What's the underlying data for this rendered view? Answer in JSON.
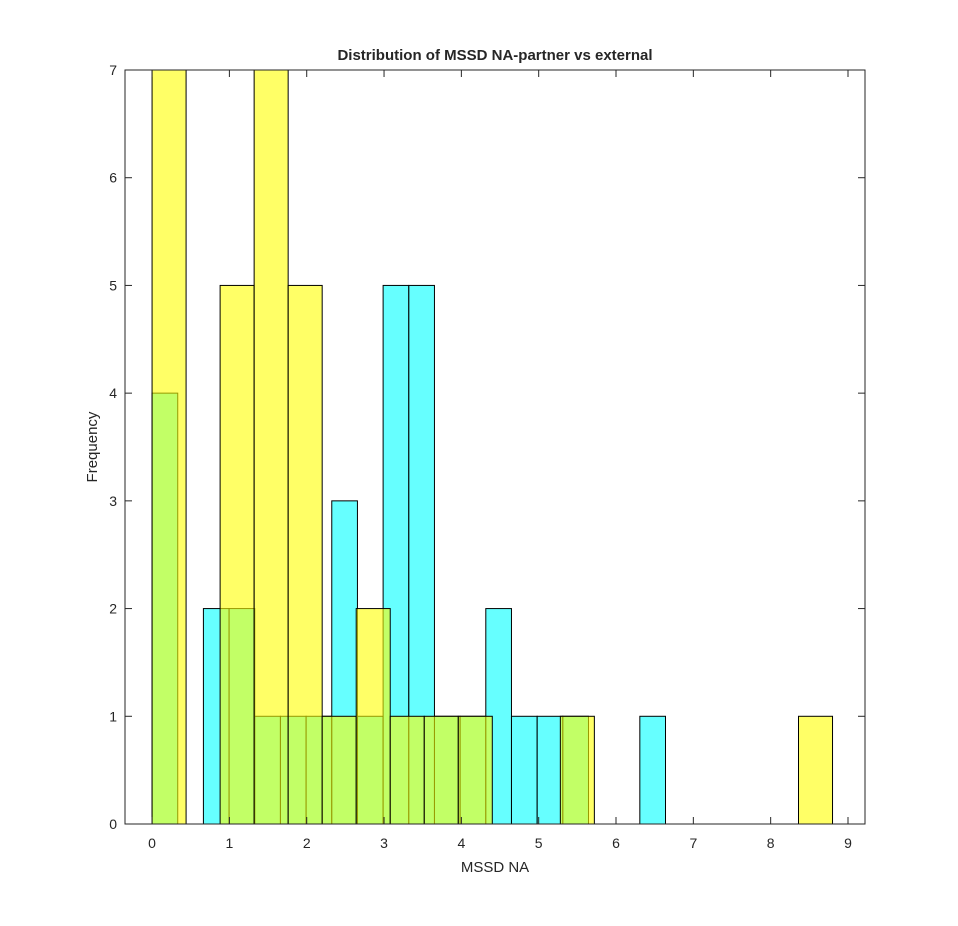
{
  "chart_data": {
    "type": "bar",
    "title": "Distribution of MSSD NA-partner vs external",
    "xlabel": "MSSD NA",
    "ylabel": "Frequency",
    "xlim": [
      -0.35,
      9.22
    ],
    "ylim": [
      0,
      7
    ],
    "xticks": [
      "0",
      "1",
      "2",
      "3",
      "4",
      "5",
      "6",
      "7",
      "8",
      "9"
    ],
    "yticks": [
      "0",
      "1",
      "2",
      "3",
      "4",
      "5",
      "6",
      "7"
    ],
    "grid": false,
    "series": [
      {
        "color": "#00FFFF",
        "opacity": 0.6,
        "bin_width": 0.332,
        "bins": [
          {
            "x0": 0.0,
            "count": 4
          },
          {
            "x0": 0.664,
            "count": 2
          },
          {
            "x0": 0.996,
            "count": 2
          },
          {
            "x0": 1.328,
            "count": 1
          },
          {
            "x0": 1.66,
            "count": 1
          },
          {
            "x0": 1.992,
            "count": 1
          },
          {
            "x0": 2.324,
            "count": 3
          },
          {
            "x0": 2.656,
            "count": 1
          },
          {
            "x0": 2.988,
            "count": 5
          },
          {
            "x0": 3.32,
            "count": 5
          },
          {
            "x0": 3.652,
            "count": 1
          },
          {
            "x0": 3.984,
            "count": 1
          },
          {
            "x0": 4.316,
            "count": 2
          },
          {
            "x0": 4.648,
            "count": 1
          },
          {
            "x0": 4.98,
            "count": 1
          },
          {
            "x0": 5.312,
            "count": 1
          },
          {
            "x0": 6.308,
            "count": 1
          }
        ]
      },
      {
        "color": "#FFFF00",
        "opacity": 0.6,
        "bin_width": 0.44,
        "bins": [
          {
            "x0": 0.0,
            "count": 7
          },
          {
            "x0": 0.88,
            "count": 5
          },
          {
            "x0": 1.32,
            "count": 7
          },
          {
            "x0": 1.76,
            "count": 5
          },
          {
            "x0": 2.2,
            "count": 1
          },
          {
            "x0": 2.64,
            "count": 2
          },
          {
            "x0": 3.08,
            "count": 1
          },
          {
            "x0": 3.52,
            "count": 1
          },
          {
            "x0": 3.96,
            "count": 1
          },
          {
            "x0": 5.28,
            "count": 1
          },
          {
            "x0": 8.36,
            "count": 1
          }
        ]
      }
    ]
  }
}
